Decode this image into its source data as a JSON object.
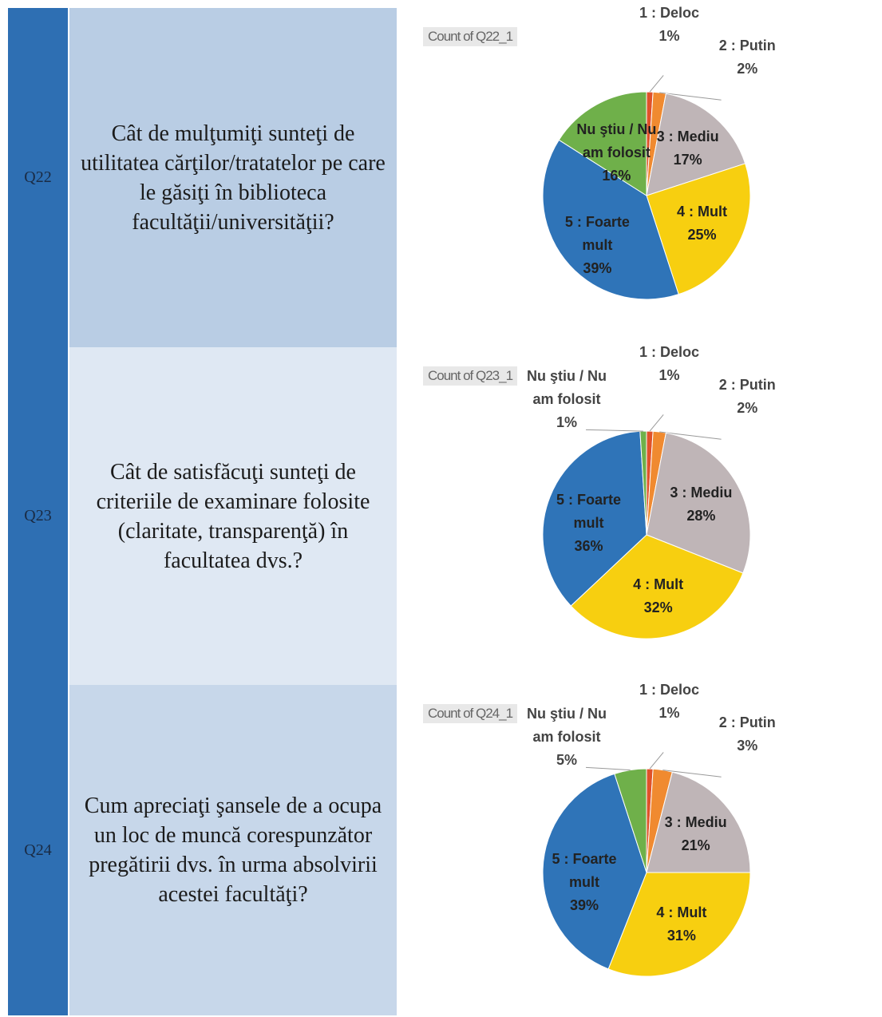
{
  "rows": [
    {
      "id": "Q22",
      "question": "Cât de mulţumiţi sunteţi de utilitatea cărţilor/tratatelor pe care le găsiţi în biblioteca facultăţii/universităţii?",
      "chart": {
        "type": "pie",
        "title": "Count of Q22_1",
        "categories": [
          "1 : Deloc",
          "2 : Putin",
          "3 : Mediu",
          "4 : Mult",
          "5 : Foarte mult",
          "Nu ştiu / Nu am folosit"
        ],
        "values": [
          1,
          2,
          17,
          25,
          39,
          16
        ],
        "value_labels": [
          "1%",
          "2%",
          "17%",
          "25%",
          "39%",
          "16%"
        ],
        "colors": [
          "#e0522a",
          "#f08a30",
          "#bfb5b7",
          "#f7cf10",
          "#2f74b8",
          "#6fb04a"
        ]
      }
    },
    {
      "id": "Q23",
      "question": "Cât de satisfăcuţi sunteţi de criteriile de examinare folosite (claritate, transparenţă) în facultatea dvs.?",
      "chart": {
        "type": "pie",
        "title": "Count of Q23_1",
        "categories": [
          "1 : Deloc",
          "2 : Putin",
          "3 : Mediu",
          "4 : Mult",
          "5 : Foarte mult",
          "Nu ştiu / Nu am folosit"
        ],
        "values": [
          1,
          2,
          28,
          32,
          36,
          1
        ],
        "value_labels": [
          "1%",
          "2%",
          "28%",
          "32%",
          "36%",
          "1%"
        ],
        "colors": [
          "#e0522a",
          "#f08a30",
          "#bfb5b7",
          "#f7cf10",
          "#2f74b8",
          "#6fb04a"
        ]
      }
    },
    {
      "id": "Q24",
      "question": "Cum apreciaţi şansele de a ocupa un loc de muncă corespunzător pregătirii dvs. în urma absolvirii acestei facultăţi?",
      "chart": {
        "type": "pie",
        "title": "Count of Q24_1",
        "categories": [
          "1 : Deloc",
          "2 : Putin",
          "3 : Mediu",
          "4 : Mult",
          "5 : Foarte mult",
          "Nu ştiu / Nu am folosit"
        ],
        "values": [
          1,
          3,
          21,
          31,
          39,
          5
        ],
        "value_labels": [
          "1%",
          "3%",
          "21%",
          "31%",
          "39%",
          "5%"
        ],
        "colors": [
          "#e0522a",
          "#f08a30",
          "#bfb5b7",
          "#f7cf10",
          "#2f74b8",
          "#6fb04a"
        ]
      }
    }
  ]
}
